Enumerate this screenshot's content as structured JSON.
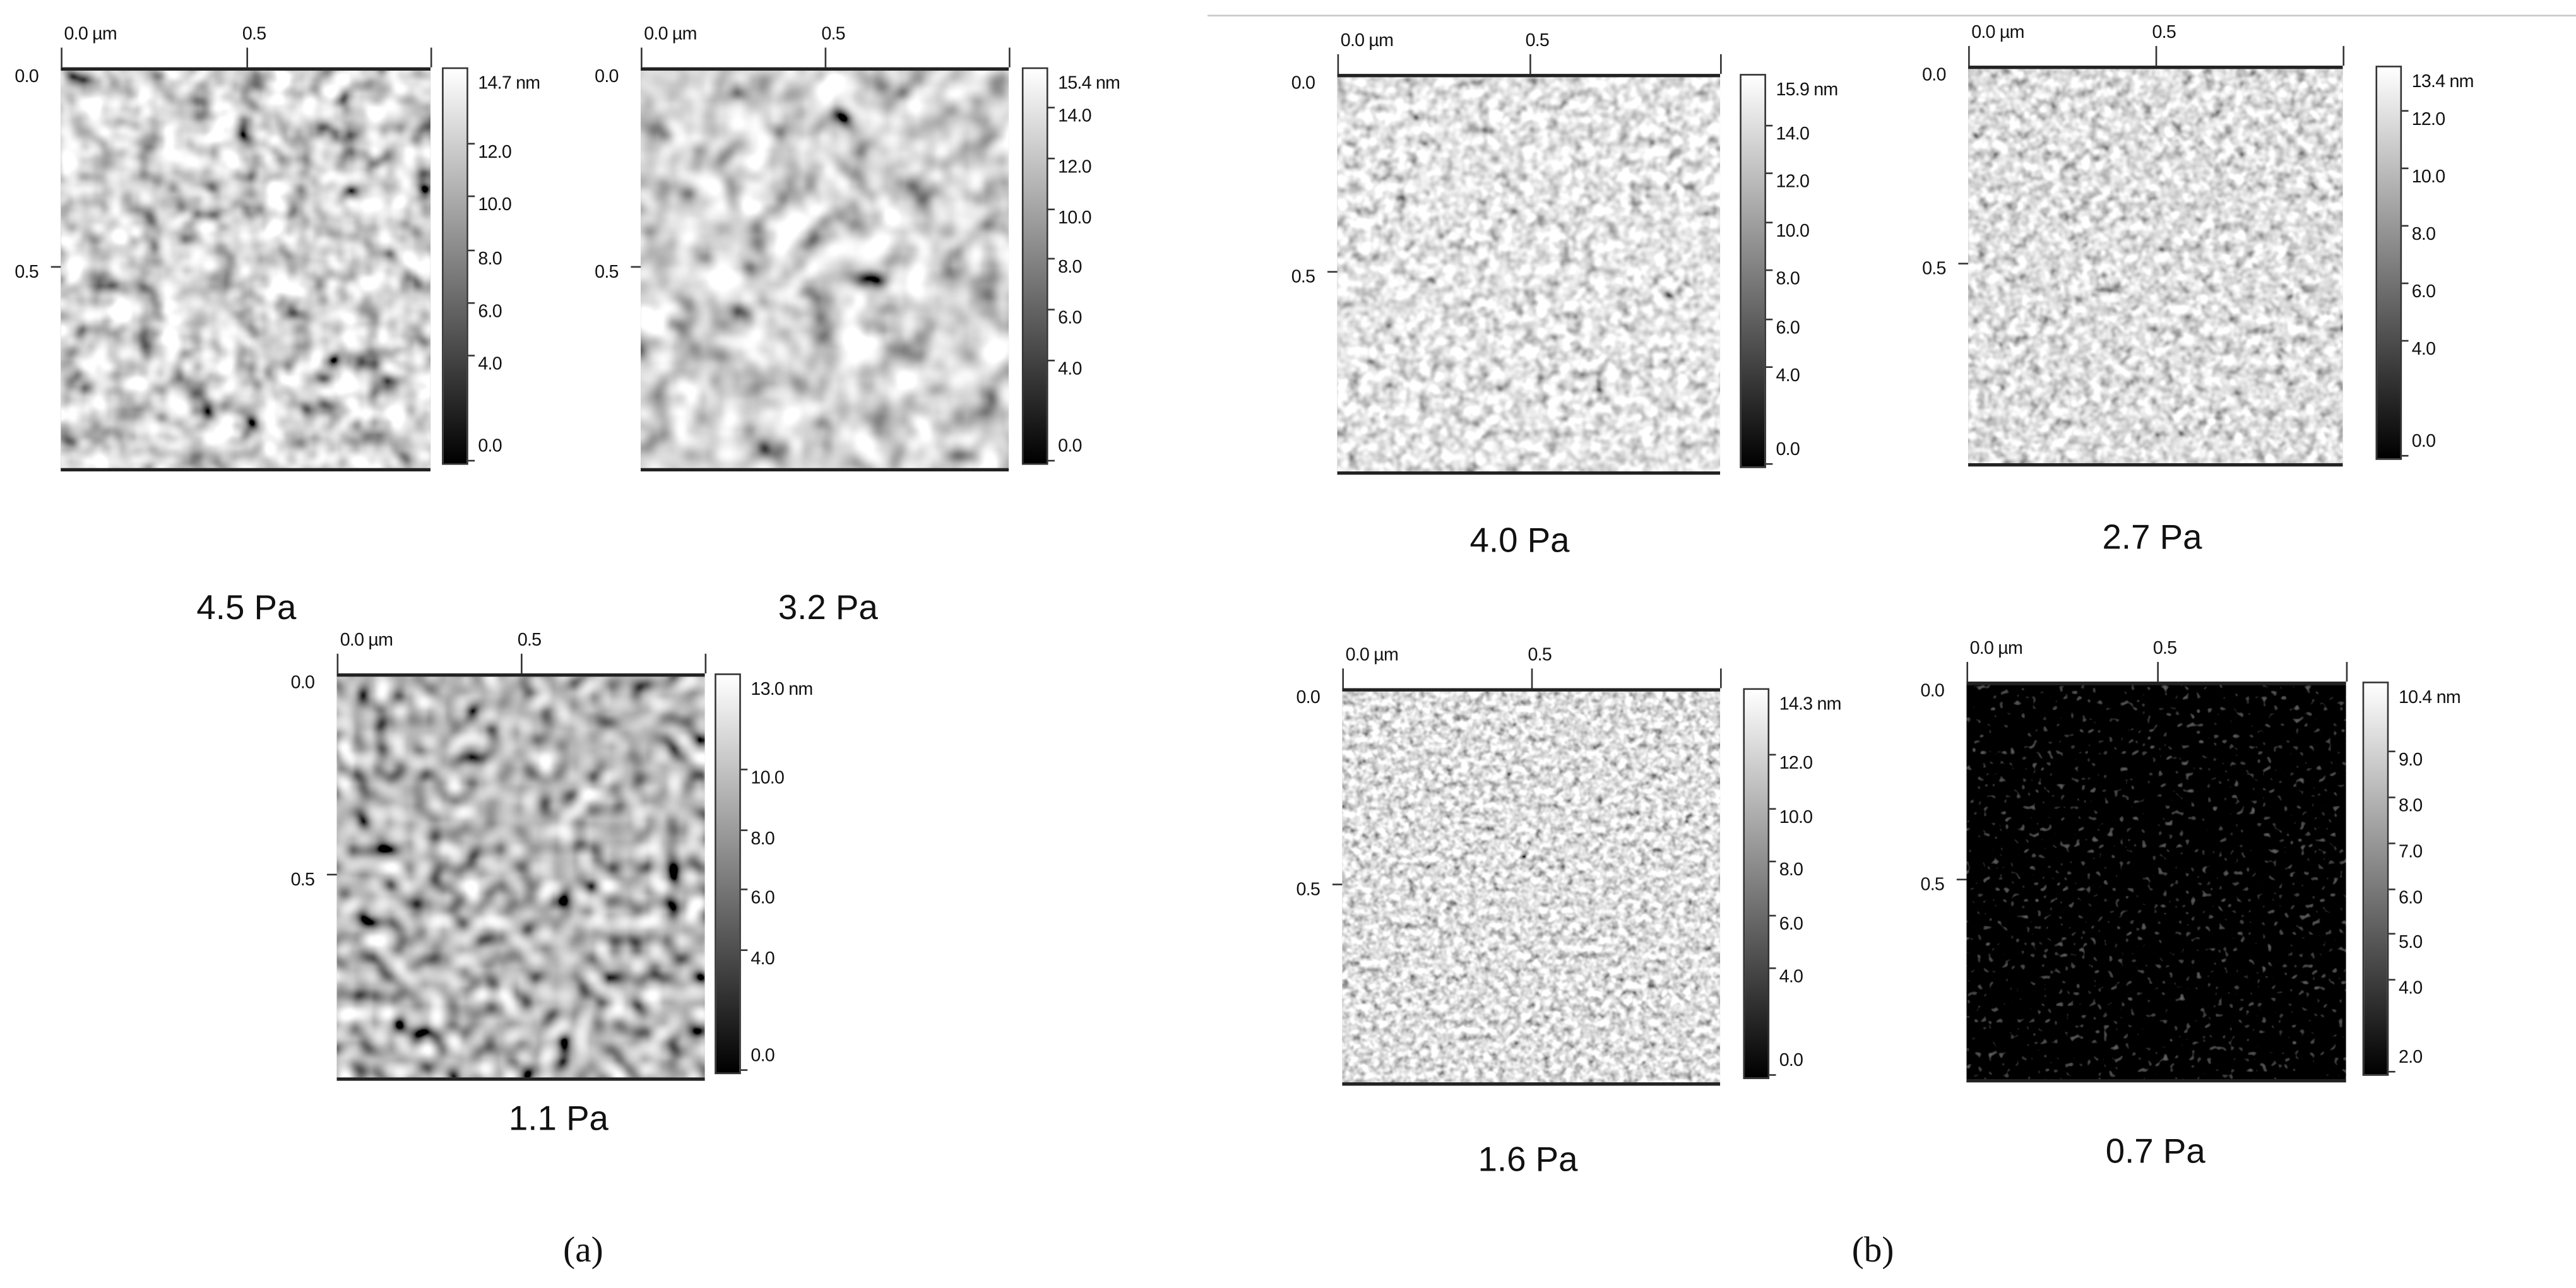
{
  "panels": [
    {
      "group": "a",
      "caption": "4.5 Pa",
      "x_labels": [
        "0.0 µm",
        "0.5"
      ],
      "y_labels": [
        "0.0",
        "0.5"
      ],
      "colorbar": {
        "unit": "nm",
        "max": 14.7,
        "min": 0.0,
        "max_label": "14.7 nm",
        "ticks": [
          12.0,
          10.0,
          8.0,
          6.0,
          4.0,
          0.0
        ],
        "tick_labels": [
          "12.0",
          "10.0",
          "8.0",
          "6.0",
          "4.0",
          "0.0"
        ]
      },
      "texture": "coarse high-contrast grains"
    },
    {
      "group": "a",
      "caption": "3.2 Pa",
      "x_labels": [
        "0.0 µm",
        "0.5"
      ],
      "y_labels": [
        "0.0",
        "0.5"
      ],
      "colorbar": {
        "unit": "nm",
        "max": 15.4,
        "min": 0.0,
        "max_label": "15.4 nm",
        "ticks": [
          14.0,
          12.0,
          10.0,
          8.0,
          6.0,
          4.0,
          0.0
        ],
        "tick_labels": [
          "14.0",
          "12.0",
          "10.0",
          "8.0",
          "6.0",
          "4.0",
          "0.0"
        ]
      },
      "texture": "coarse elongated grains"
    },
    {
      "group": "a",
      "caption": "1.1 Pa",
      "x_labels": [
        "0.0 µm",
        "0.5"
      ],
      "y_labels": [
        "0.0",
        "0.5"
      ],
      "colorbar": {
        "unit": "nm",
        "max": 13.0,
        "min": 0.0,
        "max_label": "13.0 nm",
        "ticks": [
          10.0,
          8.0,
          6.0,
          4.0,
          0.0
        ],
        "tick_labels": [
          "10.0",
          "8.0",
          "6.0",
          "4.0",
          "0.0"
        ]
      },
      "texture": "round bright grains on dark"
    },
    {
      "group": "b",
      "caption": "4.0 Pa",
      "x_labels": [
        "0.0 µm",
        "0.5"
      ],
      "y_labels": [
        "0.0",
        "0.5"
      ],
      "colorbar": {
        "unit": "nm",
        "max": 15.9,
        "min": 0.0,
        "max_label": "15.9 nm",
        "ticks": [
          14.0,
          12.0,
          10.0,
          8.0,
          6.0,
          4.0,
          0.0
        ],
        "tick_labels": [
          "14.0",
          "12.0",
          "10.0",
          "8.0",
          "6.0",
          "4.0",
          "0.0"
        ]
      },
      "texture": "fine light grains"
    },
    {
      "group": "b",
      "caption": "2.7 Pa",
      "x_labels": [
        "0.0 µm",
        "0.5"
      ],
      "y_labels": [
        "0.0",
        "0.5"
      ],
      "colorbar": {
        "unit": "nm",
        "max": 13.4,
        "min": 0.0,
        "max_label": "13.4 nm",
        "ticks": [
          12.0,
          10.0,
          8.0,
          6.0,
          4.0,
          0.0
        ],
        "tick_labels": [
          "12.0",
          "10.0",
          "8.0",
          "6.0",
          "4.0",
          "0.0"
        ]
      },
      "texture": "fine light grains"
    },
    {
      "group": "b",
      "caption": "1.6 Pa",
      "x_labels": [
        "0.0 µm",
        "0.5"
      ],
      "y_labels": [
        "0.0",
        "0.5"
      ],
      "colorbar": {
        "unit": "nm",
        "max": 14.3,
        "min": 0.0,
        "max_label": "14.3 nm",
        "ticks": [
          12.0,
          10.0,
          8.0,
          6.0,
          4.0,
          0.0
        ],
        "tick_labels": [
          "12.0",
          "10.0",
          "8.0",
          "6.0",
          "4.0",
          "0.0"
        ]
      },
      "texture": "very fine grains"
    },
    {
      "group": "b",
      "caption": "0.7 Pa",
      "x_labels": [
        "0.0 µm",
        "0.5"
      ],
      "y_labels": [
        "0.0",
        "0.5"
      ],
      "colorbar": {
        "unit": "nm",
        "max": 10.4,
        "min": 2.0,
        "max_label": "10.4 nm",
        "ticks": [
          9.0,
          8.0,
          7.0,
          6.0,
          5.0,
          4.0,
          2.0
        ],
        "tick_labels": [
          "9.0",
          "8.0",
          "7.0",
          "6.0",
          "5.0",
          "4.0",
          "2.0"
        ]
      },
      "texture": "dark smooth surface"
    }
  ],
  "group_labels": {
    "a": "(a)",
    "b": "(b)"
  }
}
